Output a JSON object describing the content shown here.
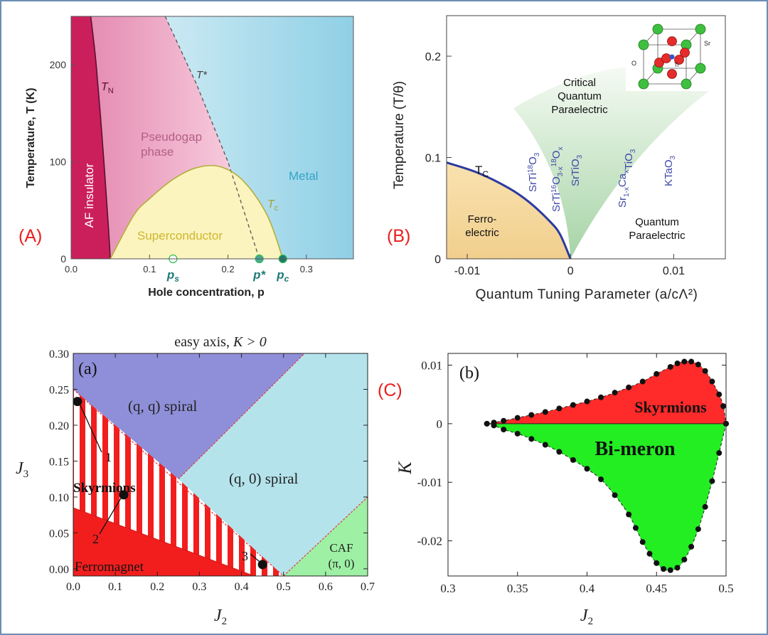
{
  "panels": [
    {
      "label": "(A)",
      "color": "#e8201e"
    },
    {
      "label": "(B)",
      "color": "#e8201e"
    },
    {
      "label": "(C)",
      "color": "#e8201e"
    }
  ],
  "colors": {
    "af_insulator": "#cb1f5c",
    "pseudogap": "#f2b9cf",
    "metal": "#a9d9ea",
    "superconductor": "#fbf4be",
    "ferroelectric": "#f5d9a0",
    "critical_para": "#d8ecd8",
    "tc_line": "#2b3aa0",
    "material_text": "#3f48a8",
    "qq_spiral": "#8f8fd9",
    "q0_spiral": "#b4e3ec",
    "ferromagnet": "#f21e1e",
    "caf": "#9ef0a4",
    "skyrmion_region": "#ff2a2a",
    "bimeron_region": "#22ee22"
  },
  "chart_data": [
    {
      "id": "A",
      "type": "area",
      "xlabel": "Hole concentration, p",
      "ylabel": "Temperature, T (K)",
      "xlim": [
        0.0,
        0.36
      ],
      "ylim": [
        0,
        250
      ],
      "x_ticks": [
        "0.0",
        "0.1",
        "0.2",
        "0.3"
      ],
      "x_tick_values": [
        0.0,
        0.1,
        0.2,
        0.3
      ],
      "y_ticks": [
        "0",
        "100",
        "200"
      ],
      "y_tick_values": [
        0,
        100,
        200
      ],
      "regions": [
        {
          "name": "AF insulator"
        },
        {
          "name": "Pseudogap phase"
        },
        {
          "name": "Superconductor"
        },
        {
          "name": "Metal"
        }
      ],
      "lines": [
        {
          "name": "T_N",
          "label_main": "T",
          "label_sub": "N",
          "x": [
            0.025,
            0.032,
            0.04,
            0.047,
            0.05
          ],
          "y": [
            250,
            200,
            120,
            40,
            0
          ]
        },
        {
          "name": "T*",
          "label": "T*",
          "x": [
            0.12,
            0.16,
            0.2,
            0.24
          ],
          "y": [
            250,
            180,
            100,
            0
          ]
        },
        {
          "name": "T_c",
          "label_main": "T",
          "label_sub": "c",
          "x": [
            0.05,
            0.08,
            0.1,
            0.13,
            0.16,
            0.19,
            0.22,
            0.25,
            0.27
          ],
          "y": [
            0,
            45,
            62,
            82,
            94,
            95,
            80,
            45,
            0
          ]
        }
      ],
      "points": [
        {
          "name": "p_s",
          "label_main": "p",
          "label_sub": "s",
          "x": 0.13,
          "y": 0
        },
        {
          "name": "p*",
          "label": "p*",
          "x": 0.24,
          "y": 0
        },
        {
          "name": "p_c",
          "label_main": "p",
          "label_sub": "c",
          "x": 0.27,
          "y": 0
        }
      ]
    },
    {
      "id": "B",
      "type": "area",
      "xlabel": "Quantum Tuning Parameter (a/cΛ²)",
      "ylabel": "Temperature (T/θ)",
      "xlim": [
        -0.012,
        0.015
      ],
      "ylim": [
        0,
        0.24
      ],
      "x_ticks": [
        "-0.01",
        "0",
        "0.01"
      ],
      "x_tick_values": [
        -0.01,
        0,
        0.01
      ],
      "y_ticks": [
        "0",
        "0.1",
        "0.2"
      ],
      "y_tick_values": [
        0,
        0.1,
        0.2
      ],
      "regions": [
        {
          "name": "Ferro-electric",
          "line1": "Ferro-",
          "line2": "electric"
        },
        {
          "name": "Critical Quantum Paraelectric",
          "line1": "Critical",
          "line2": "Quantum",
          "line3": "Paraelectric"
        },
        {
          "name": "Quantum Paraelectric",
          "line1": "Quantum",
          "line2": "Paraelectric"
        }
      ],
      "tc_line": {
        "name": "T_C",
        "label_main": "T",
        "label_sub": "C",
        "x": [
          -0.012,
          -0.009,
          -0.006,
          -0.004,
          -0.002,
          -0.001,
          0
        ],
        "y": [
          0.095,
          0.085,
          0.07,
          0.056,
          0.037,
          0.024,
          0
        ]
      },
      "materials": [
        {
          "name": "SrTi18O3",
          "a": "SrTi",
          "sup1": "18",
          "b": "O",
          "sub1": "3"
        },
        {
          "name": "SrTi16O3-x18Ox",
          "a": "SrTi",
          "sup1": "16",
          "b": "O",
          "sub1": "3-x",
          "sup2": "18",
          "c": "O",
          "sub2": "x"
        },
        {
          "name": "SrTiO3",
          "a": "SrTiO",
          "sub1": "3"
        },
        {
          "name": "Sr1-xCaxTiO3",
          "a": "Sr",
          "sub1": "1-x",
          "b": "Ca",
          "sub2": "x",
          "c": "TiO",
          "sub3": "3"
        },
        {
          "name": "KTaO3",
          "a": "KTaO",
          "sub1": "3"
        }
      ],
      "inset_labels": {
        "sr": "Sr",
        "o": "O",
        "ti": "Ti"
      }
    },
    {
      "id": "C-a",
      "type": "area",
      "title": "easy axis, K > 0",
      "title_main": "easy axis, ",
      "title_math": "K > 0",
      "panel_tag": "(a)",
      "xlabel": "J2",
      "xlabel_main": "J",
      "xlabel_sub": "2",
      "ylabel": "J3",
      "ylabel_main": "J",
      "ylabel_sub": "3",
      "xlim": [
        0.0,
        0.7
      ],
      "ylim": [
        -0.01,
        0.3
      ],
      "x_ticks": [
        "0.0",
        "0.1",
        "0.2",
        "0.3",
        "0.4",
        "0.5",
        "0.6",
        "0.7"
      ],
      "x_tick_values": [
        0.0,
        0.1,
        0.2,
        0.3,
        0.4,
        0.5,
        0.6,
        0.7
      ],
      "y_ticks": [
        "0.00",
        "0.05",
        "0.10",
        "0.15",
        "0.20",
        "0.25",
        "0.30"
      ],
      "y_tick_values": [
        0.0,
        0.05,
        0.1,
        0.15,
        0.2,
        0.25,
        0.3
      ],
      "regions": [
        {
          "name": "(q, q) spiral",
          "label": "(q, q) spiral"
        },
        {
          "name": "(q, 0) spiral",
          "label": "(q, 0) spiral"
        },
        {
          "name": "Skyrmions",
          "label": "Skyrmions"
        },
        {
          "name": "Ferromagnet",
          "label": "Ferromagnet"
        },
        {
          "name": "CAF (π, 0)",
          "line1": "CAF",
          "line2": "(π, 0)"
        }
      ],
      "points": [
        {
          "label": "1",
          "x": 0.01,
          "y": 0.233
        },
        {
          "label": "2",
          "x": 0.12,
          "y": 0.103
        },
        {
          "label": "3",
          "x": 0.45,
          "y": 0.006
        }
      ]
    },
    {
      "id": "C-b",
      "type": "scatter",
      "panel_tag": "(b)",
      "xlabel": "J2",
      "xlabel_main": "J",
      "xlabel_sub": "2",
      "ylabel": "K",
      "xlim": [
        0.3,
        0.5
      ],
      "ylim": [
        -0.026,
        0.012
      ],
      "x_ticks": [
        "0.3",
        "0.35",
        "0.4",
        "0.45",
        "0.5"
      ],
      "x_tick_values": [
        0.3,
        0.35,
        0.4,
        0.45,
        0.5
      ],
      "y_ticks": [
        "0.01",
        "0",
        "-0.01",
        "-0.02"
      ],
      "y_tick_values": [
        0.01,
        0,
        -0.01,
        -0.02
      ],
      "regions": [
        {
          "name": "Skyrmions",
          "label": "Skyrmions"
        },
        {
          "name": "Bi-meron",
          "label": "Bi-meron"
        }
      ],
      "upper_boundary": {
        "x": [
          0.328,
          0.333,
          0.34,
          0.35,
          0.36,
          0.37,
          0.38,
          0.39,
          0.4,
          0.41,
          0.42,
          0.43,
          0.44,
          0.45,
          0.46,
          0.465,
          0.47,
          0.475,
          0.48,
          0.485,
          0.49,
          0.495,
          0.498,
          0.5
        ],
        "y": [
          0,
          0.0002,
          0.0005,
          0.001,
          0.0015,
          0.002,
          0.0026,
          0.0032,
          0.0038,
          0.0045,
          0.0053,
          0.0062,
          0.0072,
          0.0085,
          0.0097,
          0.0103,
          0.0106,
          0.0106,
          0.0101,
          0.009,
          0.0072,
          0.005,
          0.003,
          0
        ]
      },
      "lower_boundary": {
        "x": [
          0.328,
          0.333,
          0.34,
          0.35,
          0.36,
          0.37,
          0.38,
          0.39,
          0.4,
          0.41,
          0.42,
          0.43,
          0.435,
          0.44,
          0.445,
          0.45,
          0.455,
          0.46,
          0.465,
          0.47,
          0.475,
          0.48,
          0.485,
          0.49,
          0.495,
          0.5
        ],
        "y": [
          0,
          -0.0003,
          -0.001,
          -0.0017,
          -0.0026,
          -0.0036,
          -0.0048,
          -0.0062,
          -0.0077,
          -0.0095,
          -0.0122,
          -0.0155,
          -0.0178,
          -0.0202,
          -0.0222,
          -0.0238,
          -0.0248,
          -0.025,
          -0.0246,
          -0.0232,
          -0.021,
          -0.018,
          -0.0142,
          -0.0098,
          -0.005,
          0
        ]
      }
    }
  ]
}
